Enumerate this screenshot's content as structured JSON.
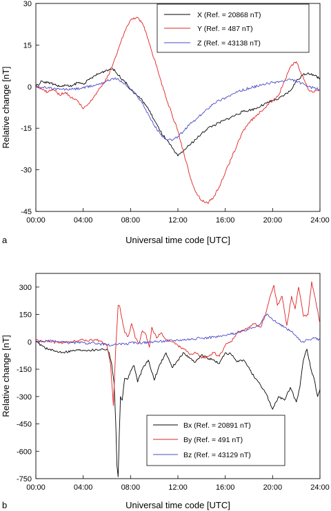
{
  "chart_data": [
    {
      "type": "line",
      "panel_label": "a",
      "xlabel": "Universal time code [UTC]",
      "ylabel": "Relative change [nT]",
      "xlim": [
        0,
        24
      ],
      "ylim": [
        -45,
        30
      ],
      "xticks": [
        0,
        4,
        8,
        12,
        16,
        20,
        24
      ],
      "xticklabels": [
        "00:00",
        "04:00",
        "08:00",
        "12:00",
        "16:00",
        "20:00",
        "24:00"
      ],
      "yticks": [
        30,
        15,
        0,
        -15,
        -30,
        -45
      ],
      "yticklabels": [
        "30",
        "15",
        "0",
        "-15",
        "-30",
        "-45"
      ],
      "legend_position": "top-right",
      "series": [
        {
          "name": "X",
          "legend_label": "X (Ref. = 20868 nT)",
          "color": "#000000",
          "x": [
            0,
            0.5,
            1,
            1.5,
            2,
            2.5,
            3,
            3.5,
            4,
            4.5,
            5,
            5.5,
            6,
            6.5,
            7,
            7.5,
            8,
            8.5,
            9,
            9.5,
            10,
            10.5,
            11,
            11.5,
            11.8,
            12,
            12.5,
            13,
            13.5,
            14,
            14.5,
            15,
            15.5,
            16,
            16.5,
            17,
            17.5,
            18,
            18.5,
            19,
            19.5,
            20,
            20.5,
            21,
            21.5,
            22,
            22.5,
            23,
            23.5,
            24
          ],
          "y": [
            0,
            2,
            1.5,
            1,
            0,
            0.5,
            0,
            1.5,
            1,
            2.5,
            4,
            5,
            6,
            6.5,
            4,
            2,
            -1,
            -3,
            -5,
            -8,
            -12,
            -16,
            -19,
            -22,
            -24,
            -25,
            -23,
            -21,
            -19,
            -17,
            -15,
            -14,
            -13,
            -12,
            -11,
            -10,
            -9,
            -8.5,
            -8,
            -7,
            -6,
            -5,
            -4.5,
            -3,
            -1.5,
            2,
            4,
            5,
            4,
            3
          ]
        },
        {
          "name": "Y",
          "legend_label": "Y (Ref. = 487 nT)",
          "color": "#e02020",
          "x": [
            0,
            0.5,
            1,
            1.5,
            2,
            2.5,
            3,
            3.5,
            4,
            4.5,
            5,
            5.5,
            6,
            6.5,
            7,
            7.5,
            8,
            8.5,
            9,
            9.5,
            10,
            10.5,
            11,
            11.5,
            12,
            12.5,
            13,
            13.5,
            14,
            14.5,
            15,
            15.5,
            16,
            16.5,
            17,
            17.5,
            18,
            18.5,
            19,
            19.5,
            20,
            20.5,
            21,
            21.5,
            22,
            22.5,
            23,
            23.5,
            24
          ],
          "y": [
            0,
            -1,
            -2,
            -1,
            -3,
            -2,
            -4,
            -5,
            -8,
            -6,
            -3,
            0,
            3,
            8,
            14,
            20,
            24,
            25,
            23,
            17,
            10,
            3,
            -4,
            -10,
            -16,
            -24,
            -32,
            -38,
            -41,
            -42,
            -40,
            -36,
            -31,
            -26,
            -21,
            -16,
            -13,
            -11,
            -9,
            -7,
            -5,
            -3,
            2,
            7,
            9,
            4,
            -1,
            -2,
            -1
          ]
        },
        {
          "name": "Z",
          "legend_label": "Z (Ref. = 43138 nT)",
          "color": "#4848c8",
          "x": [
            0,
            1,
            2,
            3,
            4,
            5,
            6,
            6.5,
            7,
            7.5,
            8,
            8.5,
            9,
            9.5,
            10,
            10.5,
            11,
            11.5,
            12,
            12.5,
            13,
            13.5,
            14,
            14.5,
            15,
            15.5,
            16,
            17,
            18,
            19,
            20,
            21,
            21.5,
            22,
            23,
            24
          ],
          "y": [
            0,
            -0.5,
            -1,
            -1,
            -0.5,
            0.5,
            2,
            3,
            2.5,
            1,
            -1,
            -3,
            -6,
            -10,
            -14,
            -17,
            -19,
            -19.5,
            -18,
            -16,
            -13.5,
            -12,
            -10,
            -8,
            -6,
            -5,
            -4,
            -2,
            -0.5,
            0.5,
            1.5,
            2,
            2.5,
            2,
            0,
            -1
          ]
        }
      ]
    },
    {
      "type": "line",
      "panel_label": "b",
      "xlabel": "Universal time code [UTC]",
      "ylabel": "Relative change [nT]",
      "xlim": [
        0,
        24
      ],
      "ylim": [
        -750,
        375
      ],
      "xticks": [
        0,
        4,
        8,
        12,
        16,
        20,
        24
      ],
      "xticklabels": [
        "00:00",
        "04:00",
        "08:00",
        "12:00",
        "16:00",
        "20:00",
        "24:00"
      ],
      "yticks": [
        300,
        150,
        0,
        -150,
        -300,
        -450,
        -600,
        -750
      ],
      "yticklabels": [
        "300",
        "150",
        "0",
        "-150",
        "-300",
        "-450",
        "-600",
        "-750"
      ],
      "legend_position": "bottom-right",
      "series": [
        {
          "name": "Bx",
          "legend_label": "Bx (Ref. = 20891 nT)",
          "color": "#000000",
          "x": [
            0,
            0.5,
            1,
            1.5,
            2,
            2.5,
            3,
            3.5,
            4,
            4.5,
            5,
            5.5,
            6,
            6.2,
            6.4,
            6.6,
            6.75,
            6.85,
            6.95,
            7.05,
            7.15,
            7.3,
            7.5,
            7.8,
            8,
            8.3,
            8.6,
            9,
            9.5,
            10,
            10.5,
            11,
            11.5,
            12,
            12.5,
            13,
            13.5,
            14,
            14.5,
            15,
            15.5,
            16,
            16.5,
            17,
            17.5,
            18,
            18.5,
            19,
            19.5,
            20,
            20.5,
            21,
            21.5,
            22,
            22.3,
            22.6,
            22.9,
            23.2,
            23.5,
            23.8,
            24
          ],
          "y": [
            0,
            -20,
            -40,
            -50,
            -55,
            -55,
            -50,
            -45,
            -45,
            -45,
            -45,
            -40,
            -40,
            -60,
            -120,
            -220,
            -450,
            -680,
            -740,
            -500,
            -300,
            -320,
            -200,
            -200,
            -160,
            -130,
            -220,
            -150,
            -100,
            -210,
            -120,
            -60,
            -140,
            -100,
            -60,
            -90,
            -110,
            -70,
            -90,
            -100,
            -120,
            -60,
            -70,
            -110,
            -100,
            -140,
            -200,
            -240,
            -290,
            -370,
            -300,
            -320,
            -250,
            -330,
            -250,
            -100,
            -40,
            -140,
            -200,
            -300,
            -260
          ]
        },
        {
          "name": "By",
          "legend_label": "By (Ref. = 491 nT)",
          "color": "#e02020",
          "x": [
            0,
            1,
            2,
            3,
            4,
            5,
            5.5,
            6,
            6.3,
            6.55,
            6.75,
            6.95,
            7.1,
            7.3,
            7.5,
            7.8,
            8.1,
            8.4,
            8.7,
            9,
            9.3,
            9.6,
            9.8,
            10.2,
            10.6,
            11,
            11.5,
            12,
            12.5,
            13,
            13.5,
            14,
            14.5,
            15,
            15.5,
            16,
            16.5,
            17,
            17.5,
            18,
            18.5,
            19,
            19.4,
            19.8,
            20.1,
            20.4,
            20.8,
            21.2,
            21.6,
            21.9,
            22.2,
            22.6,
            23,
            23.3,
            23.6,
            24
          ],
          "y": [
            10,
            0,
            -5,
            0,
            10,
            10,
            5,
            -20,
            -120,
            -350,
            -30,
            200,
            190,
            120,
            50,
            30,
            100,
            20,
            -10,
            60,
            40,
            -30,
            80,
            20,
            50,
            10,
            0,
            -20,
            -40,
            -70,
            -60,
            -90,
            -80,
            -60,
            -80,
            -20,
            0,
            50,
            60,
            80,
            100,
            80,
            150,
            250,
            310,
            200,
            250,
            90,
            250,
            180,
            300,
            140,
            150,
            330,
            240,
            100
          ]
        },
        {
          "name": "Bz",
          "legend_label": "Bz (Ref. = 43129 nT)",
          "color": "#4848c8",
          "x": [
            0,
            1,
            2,
            3,
            4,
            5,
            6,
            6.5,
            7,
            7.5,
            8,
            9,
            10,
            11,
            12,
            13,
            14,
            15,
            16,
            17,
            18,
            19,
            19.3,
            19.6,
            20,
            20.5,
            21,
            21.5,
            22,
            22.5,
            23,
            23.5,
            24
          ],
          "y": [
            0,
            5,
            0,
            -5,
            -5,
            -10,
            -15,
            -20,
            -10,
            -15,
            -5,
            -5,
            0,
            5,
            10,
            15,
            20,
            25,
            35,
            50,
            70,
            100,
            140,
            150,
            120,
            100,
            80,
            60,
            30,
            0,
            10,
            20,
            10
          ]
        }
      ]
    }
  ]
}
